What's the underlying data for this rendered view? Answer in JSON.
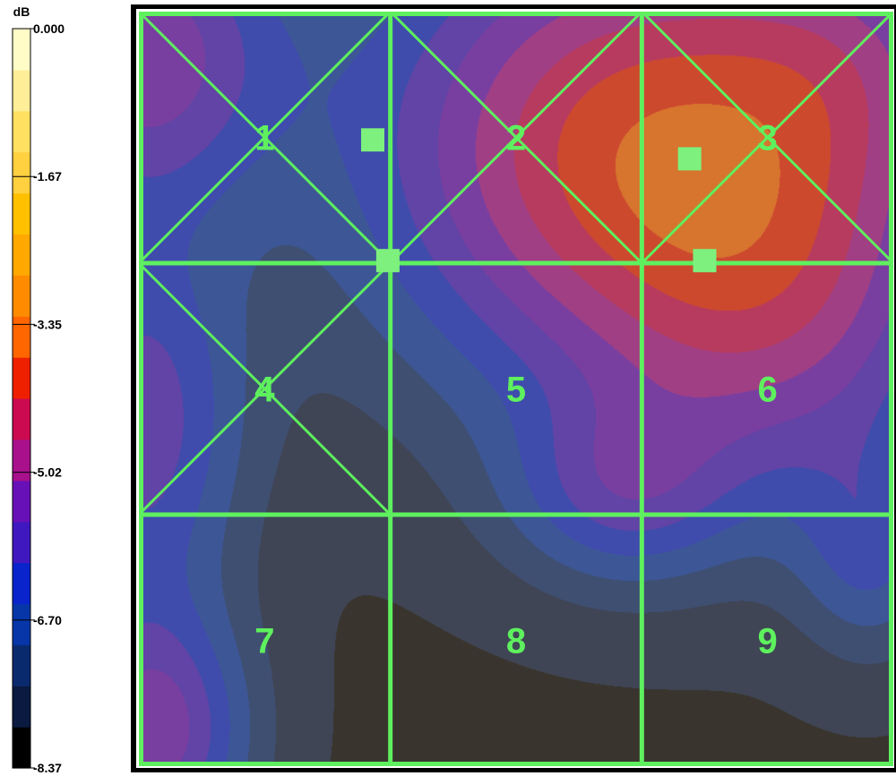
{
  "chart_data": {
    "type": "heatmap",
    "unit": "dB",
    "colorbar": {
      "min": -8.37,
      "max": 0.0,
      "tick_labels": [
        "0.000",
        "-1.67",
        "-3.35",
        "-5.02",
        "-6.70",
        "-8.37"
      ],
      "levels": [
        "#000000",
        "#0a1a40",
        "#0a2a6e",
        "#0636a8",
        "#0a24cc",
        "#4018c0",
        "#6810b8",
        "#a8108c",
        "#cc0a50",
        "#ee2000",
        "#ff6600",
        "#ff8c00",
        "#ffa800",
        "#ffc000",
        "#ffd040",
        "#ffe060",
        "#ffee98",
        "#fffcc8"
      ]
    },
    "grid": {
      "rows": 3,
      "cols": 3,
      "zone_labels": [
        "1",
        "2",
        "3",
        "4",
        "5",
        "6",
        "7",
        "8",
        "9"
      ]
    },
    "crossed_zones": [
      "1",
      "2",
      "3",
      "4"
    ],
    "markers": [
      {
        "x": 0.31,
        "y": 0.17
      },
      {
        "x": 0.33,
        "y": 0.33
      },
      {
        "x": 0.73,
        "y": 0.195
      },
      {
        "x": 0.75,
        "y": 0.33
      }
    ],
    "field_sources": [
      {
        "x": 0.66,
        "y": 0.18,
        "amp": 4.0,
        "sx": 0.26,
        "sy": 0.24
      },
      {
        "x": 0.0,
        "y": 0.05,
        "amp": 2.6,
        "sx": 0.13,
        "sy": 0.15
      },
      {
        "x": 0.97,
        "y": 0.05,
        "amp": 1.2,
        "sx": 0.14,
        "sy": 0.14
      },
      {
        "x": 0.0,
        "y": 0.55,
        "amp": 2.2,
        "sx": 0.1,
        "sy": 0.18
      },
      {
        "x": 0.02,
        "y": 0.96,
        "amp": 2.6,
        "sx": 0.09,
        "sy": 0.12
      },
      {
        "x": 0.64,
        "y": 0.64,
        "amp": 1.5,
        "sx": 0.11,
        "sy": 0.09
      },
      {
        "x": 0.97,
        "y": 0.72,
        "amp": 1.3,
        "sx": 0.07,
        "sy": 0.1
      },
      {
        "x": 0.87,
        "y": 0.42,
        "amp": 1.6,
        "sx": 0.17,
        "sy": 0.18
      }
    ],
    "field_base": -8.0,
    "colors": {
      "grid_line": "#5ef05e",
      "marker": "#7df07d",
      "zone_label": "#5ef05e"
    }
  }
}
